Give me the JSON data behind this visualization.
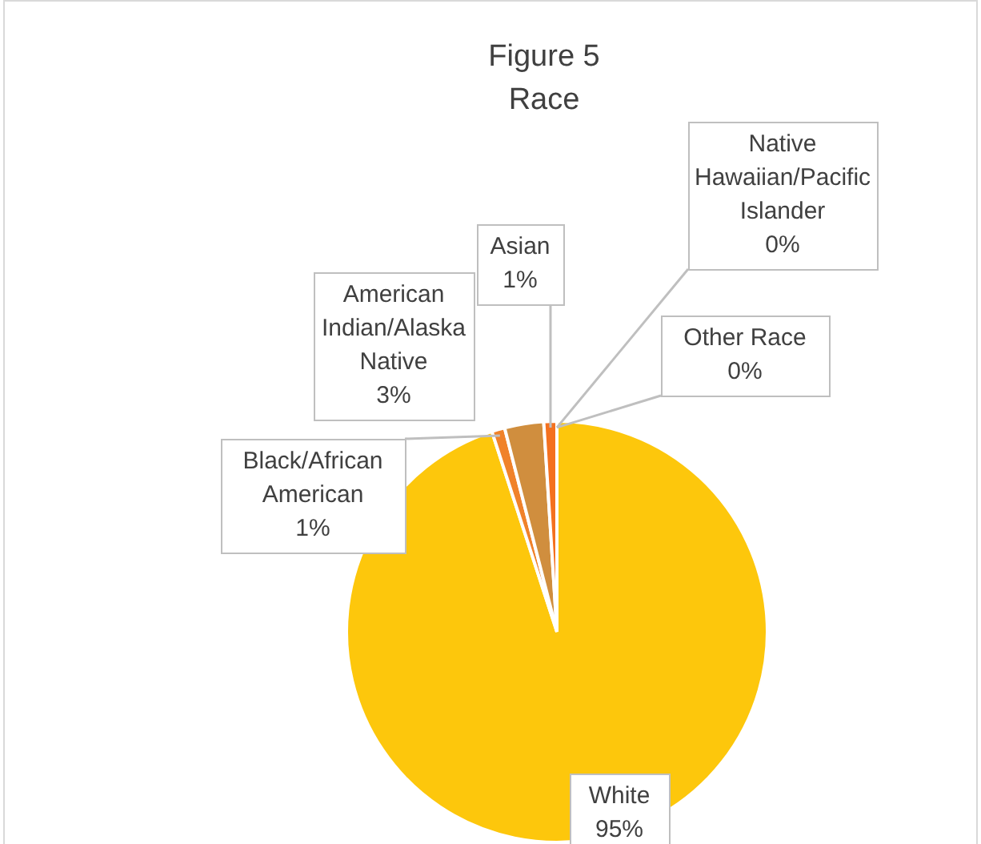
{
  "chart_data": {
    "type": "pie",
    "title": "Figure 5",
    "subtitle": "Race",
    "categories": [
      "White",
      "Black/African American",
      "American Indian/Alaska Native",
      "Asian",
      "Native Hawaiian/Pacific Islander",
      "Other Race"
    ],
    "values": [
      95,
      1,
      3,
      1,
      0,
      0
    ],
    "value_labels": [
      "95%",
      "1%",
      "3%",
      "1%",
      "0%",
      "0%"
    ],
    "colors": [
      "#fdc70c",
      "#f0822a",
      "#d08e3e",
      "#f4711f",
      "#e89c3a",
      "#f5a623"
    ],
    "legend": false
  }
}
